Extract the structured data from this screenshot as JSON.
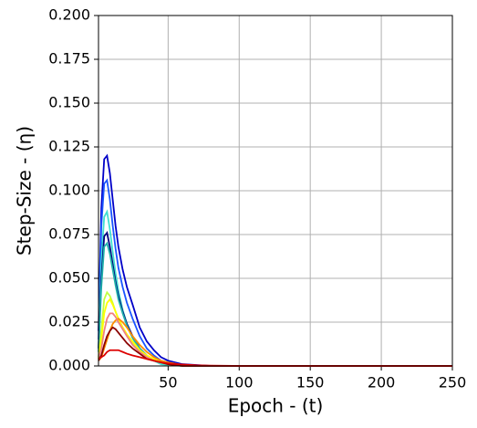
{
  "chart_data": {
    "type": "line",
    "xlabel": "Epoch - (t)",
    "ylabel": "Step-Size - (η)",
    "x": [
      1,
      3,
      5,
      7,
      9,
      11,
      13,
      15,
      18,
      21,
      25,
      30,
      35,
      40,
      45,
      50,
      60,
      70,
      80,
      100,
      150,
      200,
      250
    ],
    "series": [
      {
        "color": "#0000c8",
        "values": [
          0.02,
          0.09,
          0.118,
          0.12,
          0.11,
          0.095,
          0.08,
          0.068,
          0.055,
          0.045,
          0.035,
          0.022,
          0.014,
          0.009,
          0.005,
          0.003,
          0.001,
          0.0005,
          0,
          0,
          0,
          0,
          0
        ]
      },
      {
        "color": "#1a55ff",
        "values": [
          0.015,
          0.08,
          0.104,
          0.106,
          0.095,
          0.08,
          0.067,
          0.056,
          0.045,
          0.036,
          0.027,
          0.017,
          0.01,
          0.006,
          0.003,
          0.002,
          0.0005,
          0,
          0,
          0,
          0,
          0,
          0
        ]
      },
      {
        "color": "#40e0d0",
        "values": [
          0.01,
          0.06,
          0.085,
          0.088,
          0.078,
          0.065,
          0.053,
          0.043,
          0.032,
          0.024,
          0.016,
          0.009,
          0.005,
          0.003,
          0.001,
          0.0005,
          0,
          0,
          0,
          0,
          0,
          0,
          0
        ]
      },
      {
        "color": "#000080",
        "values": [
          0.01,
          0.05,
          0.074,
          0.076,
          0.068,
          0.058,
          0.048,
          0.04,
          0.031,
          0.024,
          0.017,
          0.01,
          0.006,
          0.003,
          0.002,
          0.001,
          0,
          0,
          0,
          0,
          0,
          0,
          0
        ]
      },
      {
        "color": "#20b2aa",
        "values": [
          0.008,
          0.045,
          0.068,
          0.07,
          0.064,
          0.055,
          0.046,
          0.038,
          0.03,
          0.023,
          0.016,
          0.01,
          0.006,
          0.003,
          0.002,
          0.001,
          0,
          0,
          0,
          0,
          0,
          0,
          0
        ]
      },
      {
        "color": "#c0ff40",
        "values": [
          0.005,
          0.02,
          0.038,
          0.042,
          0.04,
          0.036,
          0.031,
          0.027,
          0.022,
          0.018,
          0.013,
          0.008,
          0.005,
          0.003,
          0.002,
          0.001,
          0,
          0,
          0,
          0,
          0,
          0,
          0
        ]
      },
      {
        "color": "#ffff00",
        "values": [
          0.004,
          0.015,
          0.03,
          0.036,
          0.038,
          0.035,
          0.031,
          0.027,
          0.022,
          0.018,
          0.014,
          0.009,
          0.006,
          0.004,
          0.002,
          0.001,
          0,
          0,
          0,
          0,
          0,
          0,
          0
        ]
      },
      {
        "color": "#ff8c00",
        "values": [
          0.003,
          0.005,
          0.01,
          0.015,
          0.02,
          0.024,
          0.026,
          0.027,
          0.025,
          0.022,
          0.017,
          0.012,
          0.008,
          0.005,
          0.003,
          0.002,
          0.0005,
          0,
          0,
          0,
          0,
          0,
          0
        ]
      },
      {
        "color": "#f08080",
        "values": [
          0.004,
          0.01,
          0.02,
          0.027,
          0.03,
          0.03,
          0.028,
          0.025,
          0.021,
          0.017,
          0.012,
          0.008,
          0.005,
          0.003,
          0.002,
          0.001,
          0,
          0,
          0,
          0,
          0,
          0,
          0
        ]
      },
      {
        "color": "#8b0000",
        "values": [
          0.003,
          0.006,
          0.012,
          0.017,
          0.02,
          0.022,
          0.021,
          0.019,
          0.016,
          0.013,
          0.01,
          0.007,
          0.004,
          0.003,
          0.002,
          0.001,
          0,
          0,
          0,
          0,
          0,
          0,
          0
        ]
      },
      {
        "color": "#dd0000",
        "values": [
          0.004,
          0.005,
          0.006,
          0.008,
          0.009,
          0.009,
          0.009,
          0.009,
          0.008,
          0.007,
          0.006,
          0.005,
          0.004,
          0.003,
          0.002,
          0.0015,
          0.0008,
          0.0004,
          0.0002,
          0,
          0,
          0,
          0
        ]
      }
    ],
    "xlim": [
      1,
      250
    ],
    "ylim": [
      0,
      0.2
    ],
    "xticks": [
      50,
      100,
      150,
      200,
      250
    ],
    "yticks": [
      {
        "value": 0,
        "label": "0.000"
      },
      {
        "value": 0.025,
        "label": "0.025"
      },
      {
        "value": 0.05,
        "label": "0.050"
      },
      {
        "value": 0.075,
        "label": "0.075"
      },
      {
        "value": 0.1,
        "label": "0.100"
      },
      {
        "value": 0.125,
        "label": "0.125"
      },
      {
        "value": 0.15,
        "label": "0.150"
      },
      {
        "value": 0.175,
        "label": "0.175"
      },
      {
        "value": 0.2,
        "label": "0.200"
      }
    ],
    "grid": true
  }
}
